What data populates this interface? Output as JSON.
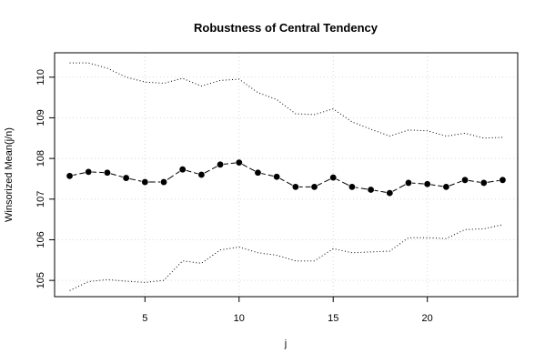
{
  "chart_data": {
    "type": "line",
    "title": "Robustness of Central Tendency",
    "xlabel": "j",
    "ylabel": "Winsorized Mean(j/n)",
    "xlim": [
      0.2,
      24.8
    ],
    "ylim": [
      104.6,
      110.6
    ],
    "x_ticks": [
      5,
      10,
      15,
      20
    ],
    "y_ticks": [
      105,
      106,
      107,
      108,
      109,
      110
    ],
    "grid": true,
    "legend": "none",
    "x": [
      1,
      2,
      3,
      4,
      5,
      6,
      7,
      8,
      9,
      10,
      11,
      12,
      13,
      14,
      15,
      16,
      17,
      18,
      19,
      20,
      21,
      22,
      23,
      24
    ],
    "series": [
      {
        "role": "upper-bound",
        "style": "dotted",
        "values": [
          110.35,
          110.35,
          110.22,
          110.0,
          109.88,
          109.85,
          109.97,
          109.78,
          109.92,
          109.95,
          109.62,
          109.45,
          109.1,
          109.08,
          109.22,
          108.9,
          108.72,
          108.55,
          108.7,
          108.68,
          108.55,
          108.62,
          108.5,
          108.52
        ]
      },
      {
        "role": "winsorized-mean",
        "style": "dashed-with-points",
        "values": [
          107.57,
          107.67,
          107.65,
          107.52,
          107.42,
          107.42,
          107.73,
          107.6,
          107.85,
          107.9,
          107.65,
          107.55,
          107.3,
          107.3,
          107.53,
          107.3,
          107.23,
          107.15,
          107.4,
          107.37,
          107.3,
          107.47,
          107.4,
          107.47
        ]
      },
      {
        "role": "lower-bound",
        "style": "dotted",
        "values": [
          104.75,
          104.97,
          105.02,
          104.98,
          104.95,
          105.0,
          105.48,
          105.42,
          105.75,
          105.82,
          105.68,
          105.62,
          105.48,
          105.48,
          105.78,
          105.68,
          105.7,
          105.72,
          106.05,
          106.05,
          106.03,
          106.25,
          106.27,
          106.37
        ]
      }
    ],
    "colors": {
      "line": "#000000",
      "grid": "#d8d8d8",
      "background": "#ffffff"
    }
  }
}
